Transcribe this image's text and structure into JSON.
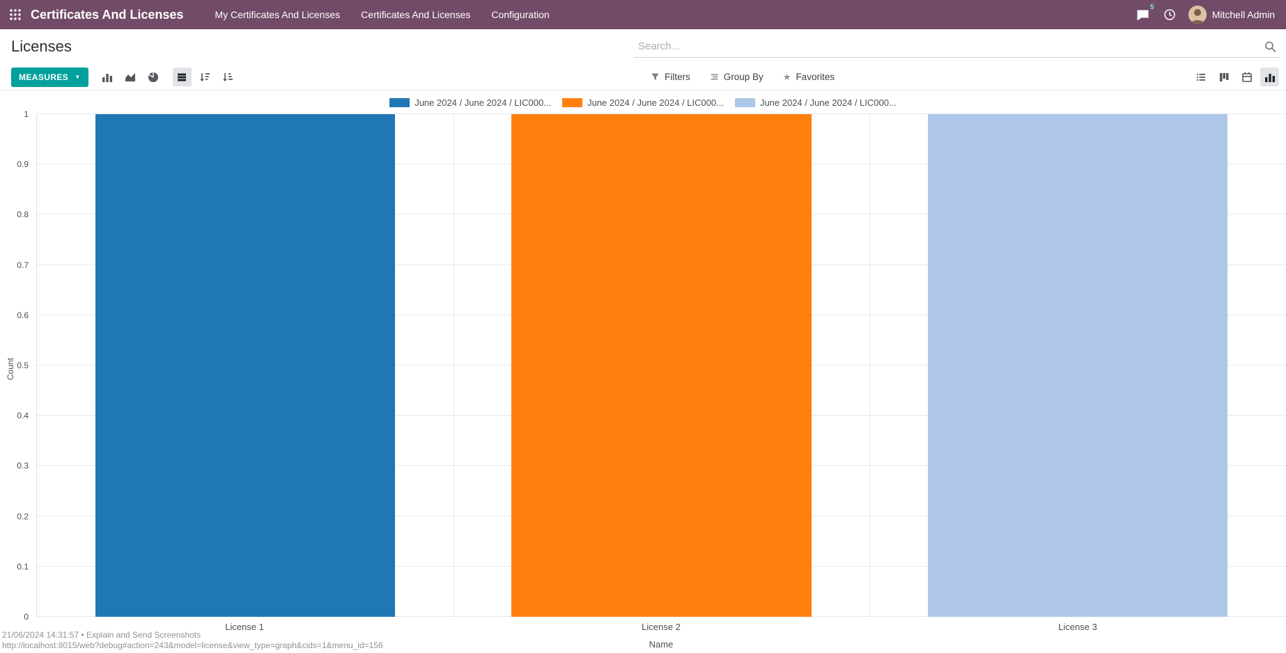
{
  "topbar": {
    "app_title": "Certificates And Licenses",
    "menus": [
      "My Certificates And Licenses",
      "Certificates And Licenses",
      "Configuration"
    ],
    "message_badge": "5",
    "user_name": "Mitchell Admin"
  },
  "header": {
    "page_title": "Licenses",
    "search_placeholder": "Search..."
  },
  "toolbar": {
    "measures": "MEASURES",
    "filters": "Filters",
    "group_by": "Group By",
    "favorites": "Favorites"
  },
  "icons": {
    "caret_down": "▼",
    "star": "★"
  },
  "chart_data": {
    "type": "bar",
    "title": "",
    "xlabel": "Name",
    "ylabel": "Count",
    "ylim": [
      0,
      1
    ],
    "yticks": [
      0,
      0.1,
      0.2,
      0.3,
      0.4,
      0.5,
      0.6,
      0.7,
      0.8,
      0.9,
      1
    ],
    "grid": true,
    "legend_position": "top",
    "categories": [
      "License 1",
      "License 2",
      "License 3"
    ],
    "series": [
      {
        "name": "June 2024 / June 2024 / LIC000...",
        "color": "#1f77b4",
        "values": [
          1,
          0,
          0
        ]
      },
      {
        "name": "June 2024 / June 2024 / LIC000...",
        "color": "#ff7f0e",
        "values": [
          0,
          1,
          0
        ]
      },
      {
        "name": "June 2024 / June 2024 / LIC000...",
        "color": "#aec7e8",
        "values": [
          0,
          0,
          1
        ]
      }
    ]
  },
  "overlay": {
    "line1": "21/06/2024 14:31:57 • Explain and Send Screenshots",
    "line2": "http://localhost:8015/web?debug#action=243&model=license&view_type=graph&cids=1&menu_id=156"
  }
}
